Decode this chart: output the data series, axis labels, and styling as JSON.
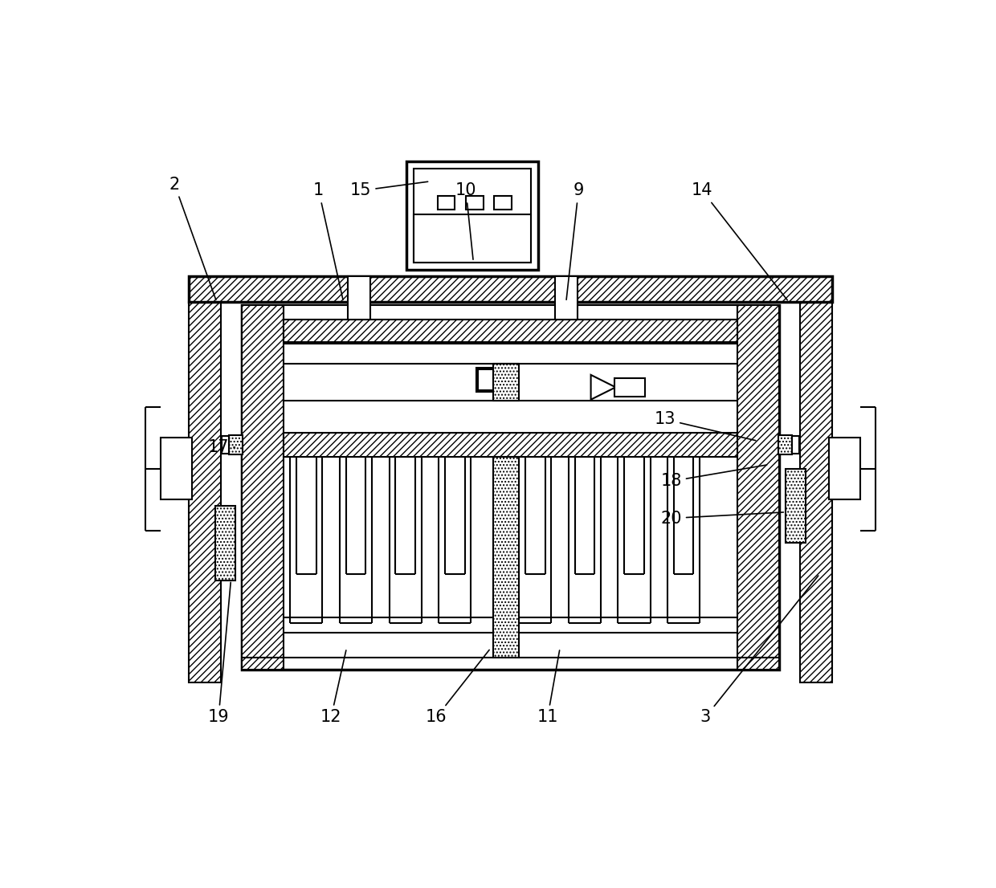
{
  "bg_color": "#ffffff",
  "lw": 1.5,
  "tlw": 2.5,
  "fs": 15,
  "hatch_dense": "////",
  "hatch_dot": "....",
  "labels_info": [
    [
      "2",
      77,
      980,
      145,
      790
    ],
    [
      "1",
      310,
      970,
      350,
      790
    ],
    [
      "15",
      378,
      970,
      490,
      985
    ],
    [
      "10",
      548,
      970,
      560,
      855
    ],
    [
      "9",
      730,
      970,
      710,
      790
    ],
    [
      "14",
      930,
      970,
      1070,
      790
    ],
    [
      "13",
      870,
      600,
      1020,
      565
    ],
    [
      "17",
      148,
      555,
      178,
      555
    ],
    [
      "18",
      880,
      500,
      1038,
      527
    ],
    [
      "20",
      880,
      440,
      1065,
      450
    ],
    [
      "19",
      148,
      118,
      168,
      340
    ],
    [
      "12",
      330,
      118,
      355,
      230
    ],
    [
      "16",
      500,
      118,
      588,
      230
    ],
    [
      "11",
      680,
      118,
      700,
      230
    ],
    [
      "3",
      935,
      118,
      1120,
      350
    ]
  ]
}
